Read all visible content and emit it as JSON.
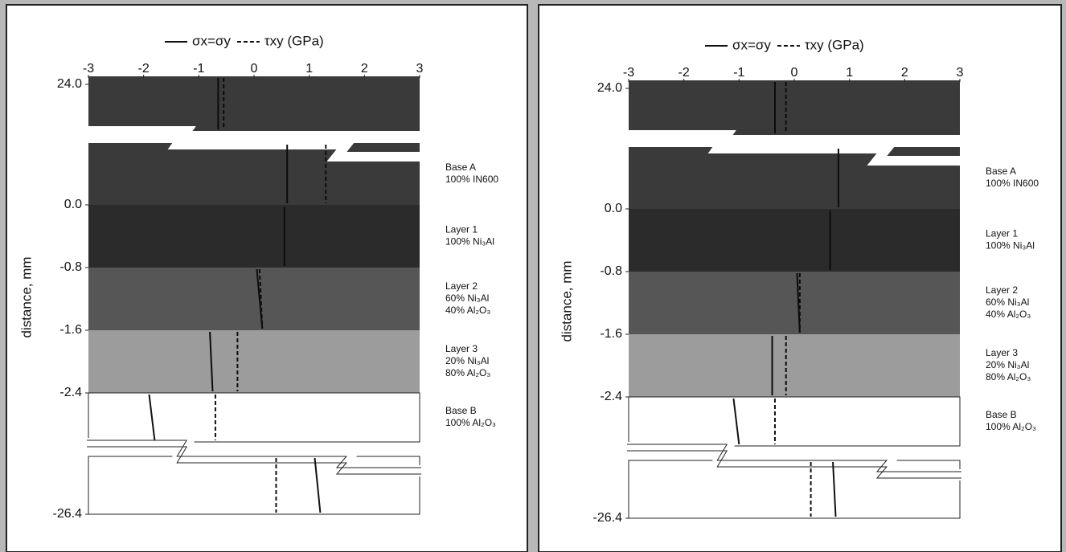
{
  "chart_data": [
    {
      "type": "profile",
      "ylabel": "distance, mm",
      "xlim": [
        -3,
        3
      ],
      "xticks": [
        -3,
        -2,
        -1,
        0,
        1,
        2,
        3
      ],
      "yticks": [
        {
          "value": 24,
          "label": "24.0"
        },
        {
          "value": 0,
          "label": "0.0"
        },
        -0.8,
        -1.6,
        -2.4,
        -26.4
      ],
      "bands": [
        {
          "color": "#3a3a3a"
        },
        {
          "color": "#3a3a3a",
          "label": [
            "Base A",
            "100% IN600"
          ]
        },
        {
          "color": "#2b2b2b",
          "label": [
            "Layer 1",
            "100% Ni₃Al"
          ]
        },
        {
          "color": "#565656",
          "label": [
            "Layer 2",
            "60% Ni₃Al",
            "40% Al₂O₃"
          ]
        },
        {
          "color": "#9c9c9c",
          "label": [
            "Layer 3",
            "20% Ni₃Al",
            "80% Al₂O₃"
          ]
        },
        {
          "color": "#ffffff",
          "label": [
            "Base B",
            "100% Al₂O₃"
          ]
        },
        {
          "color": "#ffffff"
        }
      ],
      "series": [
        {
          "name": "σx=σy",
          "style": "solid",
          "values": [
            [
              -0.65,
              -0.65
            ],
            [
              0.6,
              0.6
            ],
            [
              0.55,
              0.55
            ],
            [
              0.05,
              0.15
            ],
            [
              -0.8,
              -0.75
            ],
            [
              -1.9,
              -1.8
            ],
            [
              1.1,
              1.2
            ]
          ]
        },
        {
          "name": "τxy (GPa)",
          "style": "dashed",
          "values": [
            [
              -0.55,
              -0.55
            ],
            [
              1.3,
              1.3
            ],
            null,
            [
              0.1,
              0.15
            ],
            [
              -0.3,
              -0.3
            ],
            [
              -0.7,
              -0.7
            ],
            [
              0.4,
              0.4
            ]
          ]
        }
      ]
    },
    {
      "type": "profile",
      "ylabel": "distance, mm",
      "xlim": [
        -3,
        3
      ],
      "xticks": [
        -3,
        -2,
        -1,
        0,
        1,
        2,
        3
      ],
      "yticks": [
        {
          "value": 24,
          "label": "24.0"
        },
        {
          "value": 0,
          "label": "0.0"
        },
        -0.8,
        -1.6,
        -2.4,
        -26.4
      ],
      "bands": [
        {
          "color": "#3a3a3a"
        },
        {
          "color": "#3a3a3a",
          "label": [
            "Base A",
            "100% IN600"
          ]
        },
        {
          "color": "#2b2b2b",
          "label": [
            "Layer 1",
            "100% Ni₃Al"
          ]
        },
        {
          "color": "#565656",
          "label": [
            "Layer 2",
            "60% Ni₃Al",
            "40% Al₂O₃"
          ]
        },
        {
          "color": "#9c9c9c",
          "label": [
            "Layer 3",
            "20% Ni₃Al",
            "80% Al₂O₃"
          ]
        },
        {
          "color": "#ffffff",
          "label": [
            "Base B",
            "100% Al₂O₃"
          ]
        },
        {
          "color": "#ffffff"
        }
      ],
      "series": [
        {
          "name": "σx=σy",
          "style": "solid",
          "values": [
            [
              -0.35,
              -0.35
            ],
            [
              0.8,
              0.8
            ],
            [
              0.65,
              0.65
            ],
            [
              0.05,
              0.1
            ],
            [
              -0.4,
              -0.4
            ],
            [
              -1.1,
              -1.0
            ],
            [
              0.7,
              0.75
            ]
          ]
        },
        {
          "name": "τxy (GPa)",
          "style": "dashed",
          "values": [
            [
              -0.15,
              -0.15
            ],
            null,
            null,
            [
              0.1,
              0.1
            ],
            [
              -0.15,
              -0.15
            ],
            [
              -0.35,
              -0.35
            ],
            [
              0.3,
              0.3
            ]
          ]
        }
      ]
    }
  ]
}
